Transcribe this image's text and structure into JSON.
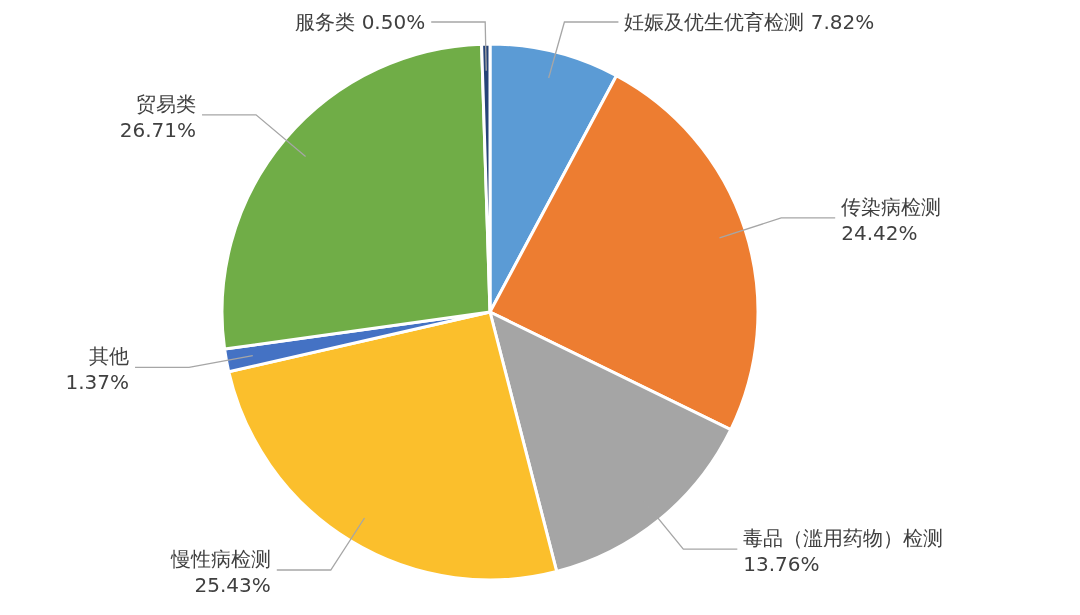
{
  "chart_data": {
    "type": "pie",
    "categories": [
      "妊娠及优生优育检测",
      "传染病检测",
      "毒品（滥用药物）检测",
      "慢性病检测",
      "其他",
      "贸易类",
      "服务类"
    ],
    "values": [
      7.82,
      24.42,
      13.76,
      25.43,
      1.37,
      26.71,
      0.5
    ],
    "value_labels": [
      "7.82%",
      "24.42%",
      "13.76%",
      "25.43%",
      "1.37%",
      "26.71%",
      "0.50%"
    ],
    "colors": [
      "#5b9bd5",
      "#ed7d31",
      "#a5a5a5",
      "#fbbf2c",
      "#4472c4",
      "#70ad47",
      "#264478"
    ]
  }
}
